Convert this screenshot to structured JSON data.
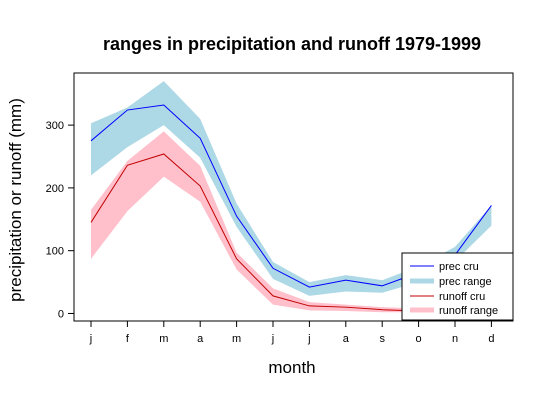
{
  "chart_data": {
    "type": "line",
    "title": "ranges in precipitation and runoff 1979-1999",
    "xlabel": "month",
    "ylabel": "precipitation or runoff (mm)",
    "categories": [
      "j",
      "f",
      "m",
      "a",
      "m",
      "j",
      "j",
      "a",
      "s",
      "o",
      "n",
      "d"
    ],
    "yticks": [
      0,
      100,
      200,
      300
    ],
    "ylim": [
      -12,
      383
    ],
    "grid": false,
    "legend_position": "bottom-right",
    "series": [
      {
        "name": "prec cru",
        "kind": "line",
        "color": "#0000ff",
        "values": [
          275,
          324,
          332,
          279,
          155,
          72,
          42,
          53,
          44,
          65,
          93,
          172
        ]
      },
      {
        "name": "prec range",
        "kind": "band",
        "color": "#add8e6",
        "upper": [
          303,
          328,
          370,
          310,
          175,
          82,
          50,
          61,
          53,
          75,
          106,
          172
        ],
        "lower": [
          220,
          265,
          300,
          248,
          138,
          55,
          28,
          35,
          33,
          50,
          83,
          140
        ]
      },
      {
        "name": "runoff cru",
        "kind": "line",
        "color": "#c00000",
        "values": [
          145,
          236,
          254,
          203,
          87,
          28,
          12,
          10,
          6,
          4,
          8,
          14
        ]
      },
      {
        "name": "runoff range",
        "kind": "band",
        "color": "#ffc0cb",
        "upper": [
          165,
          243,
          290,
          235,
          97,
          40,
          18,
          14,
          10,
          8,
          12,
          20
        ],
        "lower": [
          87,
          163,
          218,
          178,
          70,
          14,
          5,
          4,
          2,
          2,
          4,
          8
        ]
      }
    ]
  }
}
